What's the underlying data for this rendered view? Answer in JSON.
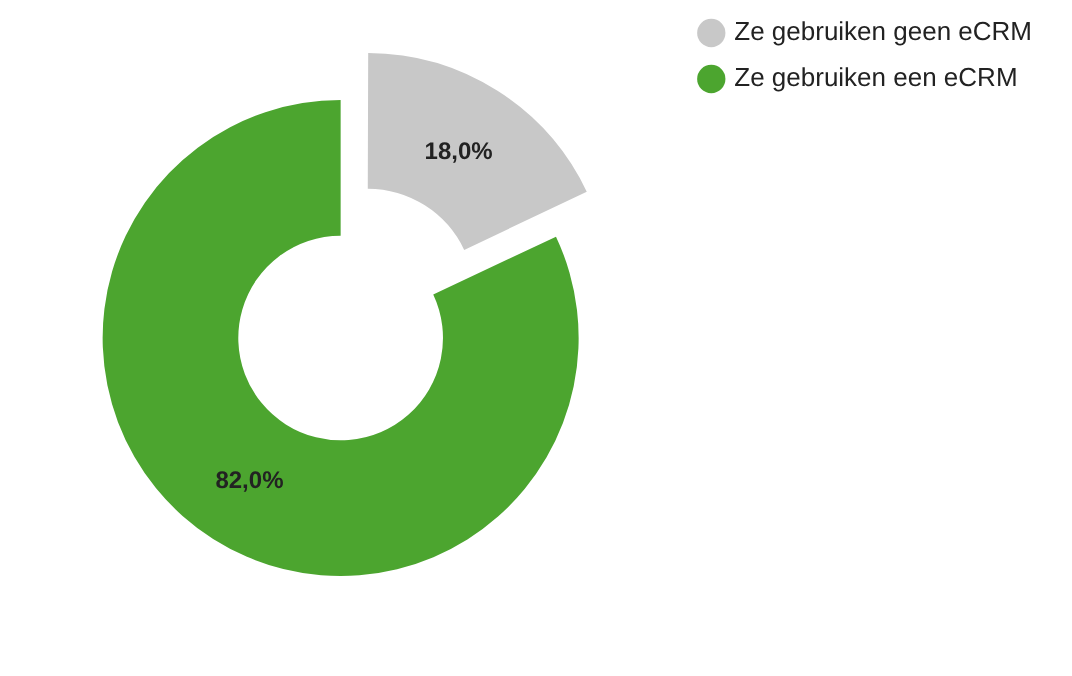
{
  "chart_data": {
    "type": "donut",
    "categories": [
      "Ze gebruiken geen eCRM",
      "Ze gebruiken een eCRM"
    ],
    "values": [
      18,
      82
    ],
    "colors": [
      "#c8c8c8",
      "#4ca52f"
    ],
    "value_labels": [
      "18,0%",
      "82,0%"
    ],
    "legend": "top right"
  }
}
